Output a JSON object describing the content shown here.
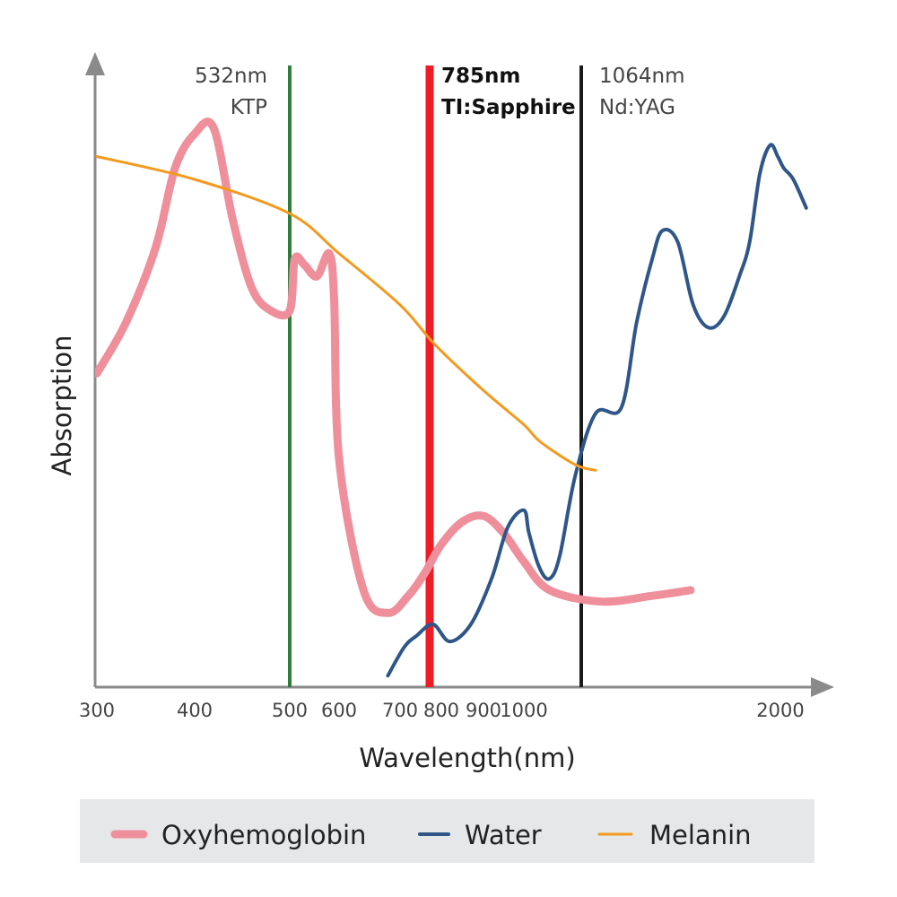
{
  "chart_data": {
    "type": "line",
    "xlabel": "Wavelength(nm)",
    "ylabel": "Absorption",
    "x_tick_labels": [
      "300",
      "400",
      "500",
      "600",
      "700",
      "800",
      "900",
      "1000",
      "2000"
    ],
    "y_ticks_shown": false,
    "grid": false,
    "legend_placement": "bottom",
    "legend": [
      {
        "label": "Oxyhemoglobin",
        "color": "#ef8f9b"
      },
      {
        "label": "Water",
        "color": "#2f5688"
      },
      {
        "label": "Melanin",
        "color": "#f39a1e"
      }
    ],
    "lasers": [
      {
        "wavelength_label": "532nm",
        "name": "KTP",
        "color": "#2e7d3a",
        "bold": false
      },
      {
        "wavelength_label": "785nm",
        "name": "TI:Sapphire",
        "color": "#ee1c25",
        "bold": true
      },
      {
        "wavelength_label": "1064nm",
        "name": "Nd:YAG",
        "color": "#1a1a1a",
        "bold": false
      }
    ],
    "series": [
      {
        "name": "Oxyhemoglobin",
        "color": "#ef8f9b",
        "points": [
          [
            300,
            0.55
          ],
          [
            330,
            0.64
          ],
          [
            360,
            0.77
          ],
          [
            380,
            0.91
          ],
          [
            400,
            0.97
          ],
          [
            420,
            0.98
          ],
          [
            440,
            0.82
          ],
          [
            460,
            0.7
          ],
          [
            480,
            0.66
          ],
          [
            500,
            0.66
          ],
          [
            510,
            0.75
          ],
          [
            530,
            0.74
          ],
          [
            555,
            0.72
          ],
          [
            580,
            0.76
          ],
          [
            590,
            0.68
          ],
          [
            600,
            0.4
          ],
          [
            640,
            0.17
          ],
          [
            680,
            0.13
          ],
          [
            720,
            0.16
          ],
          [
            760,
            0.2
          ],
          [
            800,
            0.25
          ],
          [
            850,
            0.29
          ],
          [
            900,
            0.3
          ],
          [
            950,
            0.27
          ],
          [
            1000,
            0.22
          ],
          [
            1100,
            0.17
          ],
          [
            1300,
            0.15
          ],
          [
            1500,
            0.16
          ],
          [
            1650,
            0.17
          ]
        ]
      },
      {
        "name": "Water",
        "color": "#2f5688",
        "points": [
          [
            680,
            0.02
          ],
          [
            710,
            0.07
          ],
          [
            740,
            0.09
          ],
          [
            780,
            0.11
          ],
          [
            820,
            0.08
          ],
          [
            870,
            0.11
          ],
          [
            920,
            0.19
          ],
          [
            960,
            0.28
          ],
          [
            1000,
            0.31
          ],
          [
            1020,
            0.27
          ],
          [
            1060,
            0.21
          ],
          [
            1100,
            0.19
          ],
          [
            1140,
            0.23
          ],
          [
            1200,
            0.37
          ],
          [
            1280,
            0.48
          ],
          [
            1380,
            0.49
          ],
          [
            1440,
            0.64
          ],
          [
            1500,
            0.75
          ],
          [
            1540,
            0.8
          ],
          [
            1600,
            0.78
          ],
          [
            1660,
            0.67
          ],
          [
            1720,
            0.63
          ],
          [
            1780,
            0.65
          ],
          [
            1840,
            0.72
          ],
          [
            1880,
            0.78
          ],
          [
            1920,
            0.9
          ],
          [
            1960,
            0.95
          ],
          [
            1990,
            0.93
          ],
          [
            2010,
            0.91
          ],
          [
            2040,
            0.89
          ],
          [
            2080,
            0.84
          ]
        ]
      },
      {
        "name": "Melanin",
        "color": "#f39a1e",
        "points": [
          [
            300,
            0.93
          ],
          [
            400,
            0.89
          ],
          [
            500,
            0.83
          ],
          [
            600,
            0.76
          ],
          [
            700,
            0.67
          ],
          [
            785,
            0.6
          ],
          [
            900,
            0.52
          ],
          [
            1000,
            0.46
          ],
          [
            1064,
            0.43
          ],
          [
            1200,
            0.39
          ],
          [
            1280,
            0.38
          ]
        ]
      }
    ]
  }
}
